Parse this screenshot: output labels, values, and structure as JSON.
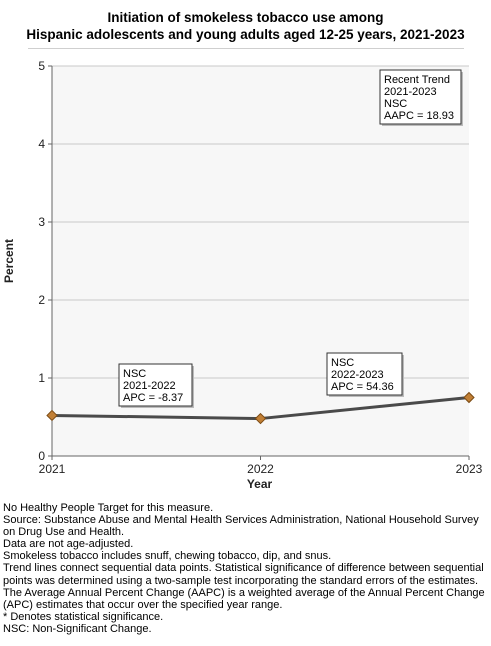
{
  "chart_data": {
    "type": "line",
    "title": "Initiation of smokeless tobacco use among Hispanic adolescents and young adults aged 12-25 years, 2021-2023",
    "title_lines": [
      "Initiation of smokeless tobacco use among",
      "Hispanic adolescents and young adults aged 12-25 years, 2021-2023"
    ],
    "xlabel": "Year",
    "ylabel": "Percent",
    "x": [
      "2021",
      "2022",
      "2023"
    ],
    "series": [
      {
        "values": [
          0.52,
          0.48,
          0.75
        ]
      }
    ],
    "ylim": [
      0,
      5
    ],
    "yticks": [
      "0",
      "1",
      "2",
      "3",
      "4",
      "5"
    ],
    "grid": true,
    "colors": {
      "line": "#4a4a4a",
      "marker": "#c17f35",
      "marker_edge": "#7a4a14",
      "plot_bg": "#f7f7f7",
      "grid": "#c8c8c8"
    },
    "annotations": [
      {
        "lines": [
          "NSC",
          "2021-2022",
          "APC = -8.37"
        ]
      },
      {
        "lines": [
          "NSC",
          "2022-2023",
          "APC = 54.36"
        ]
      }
    ],
    "trend_box": {
      "lines": [
        "Recent Trend",
        "2021-2023",
        "NSC",
        "AAPC = 18.93"
      ],
      "placement": "top-right"
    }
  },
  "notes": [
    "No Healthy People Target for this measure.",
    "Source: Substance Abuse and Mental Health Services Administration, National Household Survey on Drug Use and Health.",
    "Data are not age-adjusted.",
    "Smokeless tobacco includes snuff, chewing tobacco, dip, and snus.",
    "Trend lines connect sequential data points. Statistical significance of difference between sequential points was determined using a two-sample test incorporating the standard errors of the estimates.",
    "The Average Annual Percent Change (AAPC) is a weighted average of the Annual Percent Change (APC) estimates that occur over the specified year range.",
    "* Denotes statistical significance.",
    "NSC: Non-Significant Change."
  ]
}
